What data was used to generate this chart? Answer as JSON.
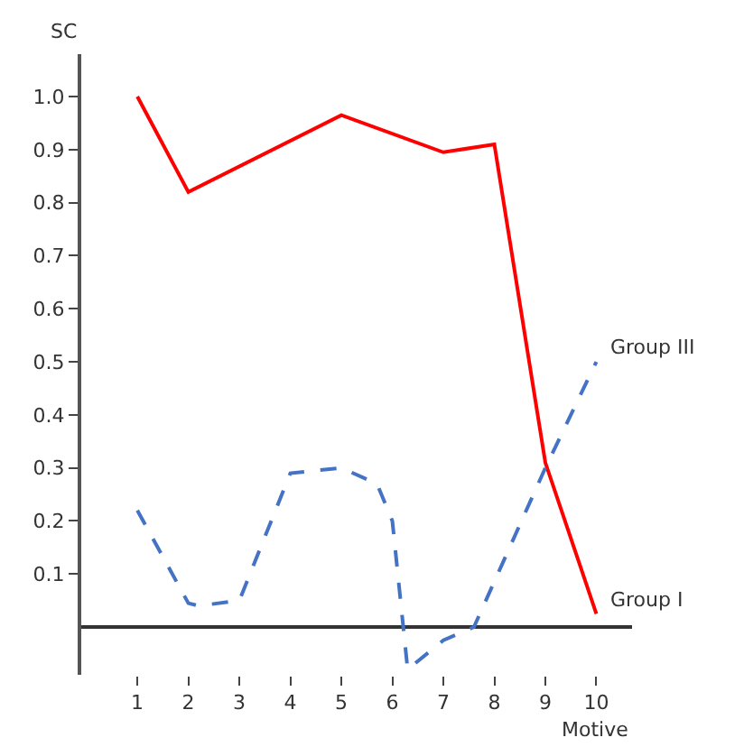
{
  "chart_data": {
    "type": "line",
    "xlabel": "Motive",
    "ylabel": "SC",
    "xlim": [
      -0.1,
      10.7
    ],
    "xticks": [
      1,
      2,
      3,
      4,
      5,
      6,
      7,
      8,
      9,
      10
    ],
    "ylim": [
      -0.09,
      1.08
    ],
    "yticks": [
      {
        "value": 0.1,
        "label": "0.1"
      },
      {
        "value": 0.2,
        "label": "0.2"
      },
      {
        "value": 0.3,
        "label": "0.3"
      },
      {
        "value": 0.4,
        "label": "0.4"
      },
      {
        "value": 0.5,
        "label": "0.5"
      },
      {
        "value": 0.6,
        "label": "0.6"
      },
      {
        "value": 0.7,
        "label": "0.7"
      },
      {
        "value": 0.8,
        "label": "0.8"
      },
      {
        "value": 0.9,
        "label": "0.9"
      },
      {
        "value": 1.0,
        "label": "1.0"
      }
    ],
    "legend": false,
    "marker": "none",
    "series": [
      {
        "name": "Group I",
        "color": "#ff0000",
        "line_style": "solid",
        "x": [
          1,
          2,
          5,
          7,
          8,
          9,
          10
        ],
        "values": [
          1.0,
          0.82,
          0.965,
          0.895,
          0.91,
          0.31,
          0.025
        ]
      },
      {
        "name": "Group III",
        "color": "#4472c4",
        "line_style": "dashed",
        "x": [
          1,
          2,
          2.2,
          3,
          4,
          5,
          5.7,
          6,
          6.3,
          7,
          7.6,
          9,
          10
        ],
        "values": [
          0.22,
          0.045,
          0.04,
          0.05,
          0.29,
          0.3,
          0.27,
          0.2,
          -0.08,
          -0.025,
          0,
          0.3,
          0.5
        ]
      }
    ]
  }
}
